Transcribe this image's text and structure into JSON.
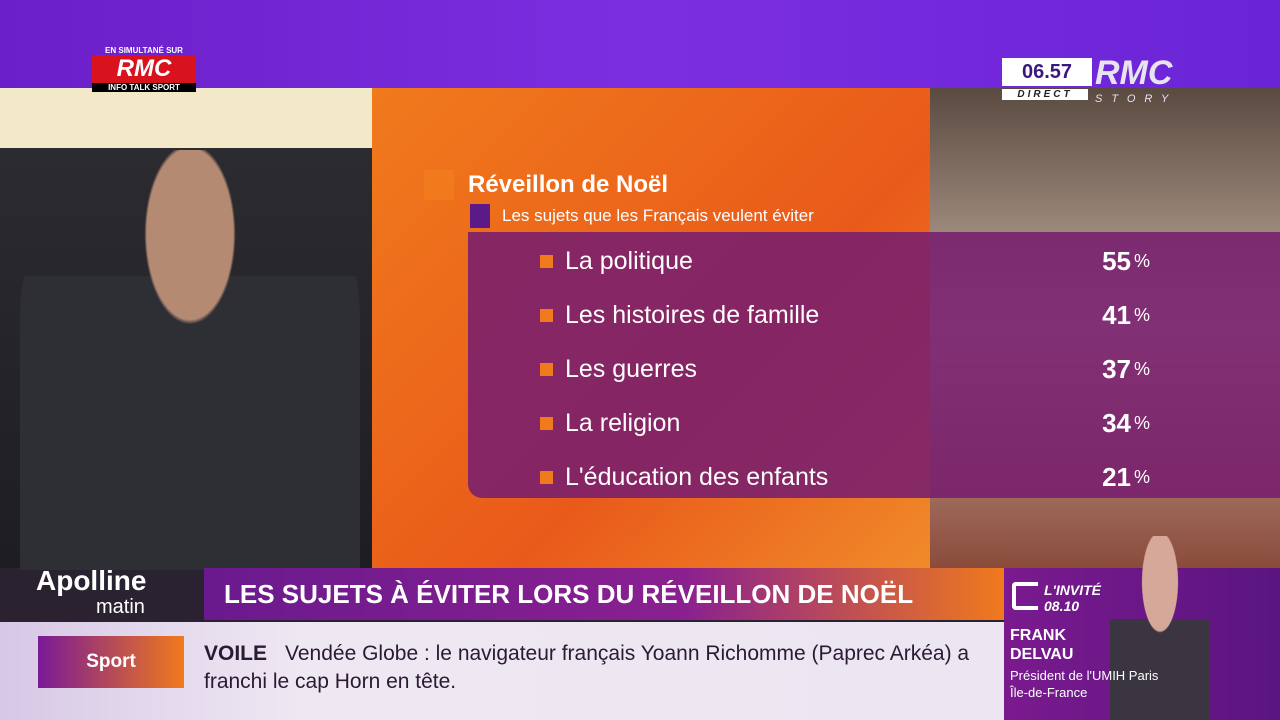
{
  "brand": {
    "simulcast": "EN SIMULTANÉ SUR",
    "rmc": "RMC",
    "tagline": "INFO TALK SPORT"
  },
  "clock": {
    "time": "06.57",
    "direct": "DIRECT",
    "channel": "RMC",
    "channel_sub": "STORY"
  },
  "graphic": {
    "title": "Réveillon de Noël",
    "subtitle": "Les sujets que les Français veulent éviter",
    "unit": "%",
    "items": [
      {
        "label": "La politique",
        "value": 55
      },
      {
        "label": "Les histoires de famille",
        "value": 41
      },
      {
        "label": "Les guerres",
        "value": 37
      },
      {
        "label": "La religion",
        "value": 34
      },
      {
        "label": "L'éducation des enfants",
        "value": 21
      }
    ],
    "accent": "#f07a1c",
    "panel": "#781e6e"
  },
  "show": {
    "name": "Apolline",
    "sub": "matin"
  },
  "headline": "LES SUJETS À ÉVITER LORS DU RÉVEILLON DE NOËL",
  "ticker": {
    "category": "Sport",
    "tag": "VOILE",
    "text": "Vendée Globe : le navigateur français Yoann Richomme (Paprec Arkéa) a franchi le cap Horn en tête."
  },
  "guest": {
    "label": "L'INVITÉ",
    "time": "08.10",
    "name_first": "FRANK",
    "name_last": "DELVAU",
    "role1": "Président de l'UMIH Paris",
    "role2": "Île-de-France"
  }
}
